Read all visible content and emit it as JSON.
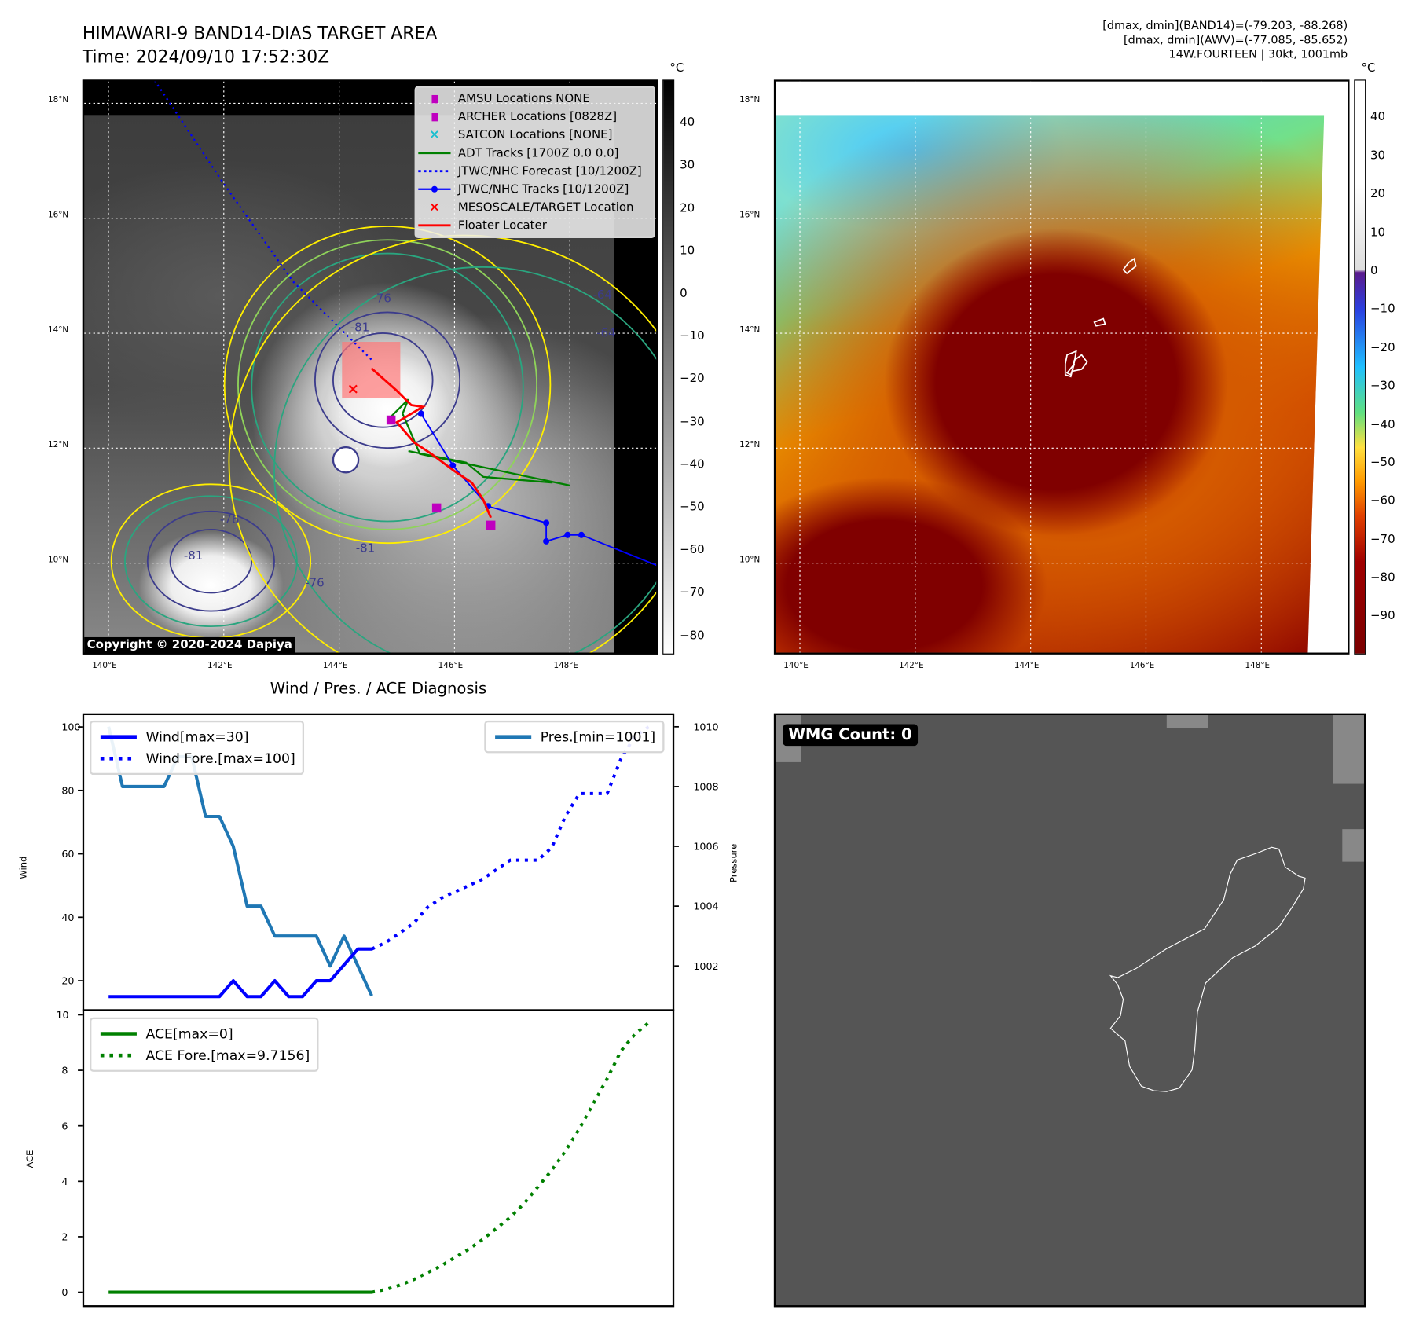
{
  "header": {
    "title": "HIMAWARI-9 BAND14-DIAS TARGET AREA",
    "time": "Time: 2024/09/10 17:52:30Z",
    "info_line1": "[dmax, dmin](BAND14)=(-79.203, -88.268)",
    "info_line2": "[dmax, dmin](AWV)=(-77.085, -85.652)",
    "info_line3": "14W.FOURTEEN | 30kt, 1001mb"
  },
  "map": {
    "lon_ticks": [
      "140°E",
      "142°E",
      "144°E",
      "146°E",
      "148°E"
    ],
    "lat_ticks": [
      "18°N",
      "16°N",
      "14°N",
      "12°N",
      "10°N"
    ],
    "lon_values": [
      140,
      142,
      144,
      146,
      148
    ],
    "lat_values": [
      18,
      16,
      14,
      12,
      10
    ],
    "lon_range": [
      139.58,
      149.56
    ],
    "lat_range": [
      8.38,
      18.38
    ],
    "copyright": "Copyright © 2020-2024 Dapiya",
    "contour_labels": [
      "-76",
      "-81",
      "-64",
      "-64",
      "-76",
      "-81",
      "-81",
      "-76"
    ],
    "legend": [
      {
        "label": "AMSU Locations NONE",
        "symbol": "square",
        "color": "#bf00bf"
      },
      {
        "label": "ARCHER Locations [0828Z]",
        "symbol": "square",
        "color": "#bf00bf"
      },
      {
        "label": "SATCON Locations [NONE]",
        "symbol": "x",
        "color": "#17becf"
      },
      {
        "label": "ADT Tracks [1700Z 0.0 0.0]",
        "symbol": "line",
        "color": "#008000"
      },
      {
        "label": "JTWC/NHC Forecast [10/1200Z]",
        "symbol": "dotted",
        "color": "#0000ff"
      },
      {
        "label": "JTWC/NHC Tracks [10/1200Z]",
        "symbol": "line-dot",
        "color": "#0000ff"
      },
      {
        "label": "MESOSCALE/TARGET Location",
        "symbol": "x",
        "color": "#ff0000"
      },
      {
        "label": "Floater Locater",
        "symbol": "line",
        "color": "#ff0000"
      }
    ],
    "jtwc_forecast": [
      [
        140.8,
        18.4
      ],
      [
        142.0,
        16.6
      ],
      [
        143.2,
        14.9
      ],
      [
        144.6,
        13.5
      ]
    ],
    "jtwc_track": [
      [
        145.42,
        12.6
      ],
      [
        145.97,
        11.7
      ],
      [
        146.58,
        10.99
      ],
      [
        147.59,
        10.7
      ],
      [
        147.59,
        10.38
      ],
      [
        147.96,
        10.49
      ],
      [
        148.2,
        10.49
      ],
      [
        149.56,
        9.94
      ]
    ],
    "floater_track": [
      [
        144.56,
        13.39
      ],
      [
        145.0,
        13.0
      ],
      [
        145.25,
        12.75
      ],
      [
        145.45,
        12.72
      ],
      [
        145.0,
        12.45
      ],
      [
        145.3,
        12.1
      ],
      [
        145.6,
        11.9
      ],
      [
        146.0,
        11.6
      ],
      [
        146.3,
        11.4
      ],
      [
        146.5,
        11.1
      ],
      [
        146.63,
        10.79
      ]
    ],
    "adt_tracks": [
      [
        [
          144.9,
          12.55
        ],
        [
          145.2,
          12.85
        ],
        [
          145.1,
          12.6
        ],
        [
          145.4,
          11.9
        ],
        [
          148.0,
          11.35
        ]
      ],
      [
        [
          145.2,
          11.95
        ],
        [
          146.2,
          11.75
        ],
        [
          146.5,
          11.5
        ],
        [
          147.7,
          11.4
        ]
      ]
    ],
    "target_location": [
      144.23,
      13.04
    ],
    "archer_locations": [
      [
        144.9,
        12.49
      ],
      [
        145.69,
        10.96
      ],
      [
        146.63,
        10.66
      ]
    ],
    "target_box": [
      [
        144.05,
        13.85
      ],
      [
        145.06,
        12.87
      ]
    ],
    "colorbar_left": {
      "unit": "°C",
      "ticks": [
        "40",
        "30",
        "20",
        "10",
        "0",
        "−10",
        "−20",
        "−30",
        "−40",
        "−50",
        "−60",
        "−70",
        "−80"
      ],
      "values": [
        40,
        30,
        20,
        10,
        0,
        -10,
        -20,
        -30,
        -40,
        -50,
        -60,
        -70,
        -80
      ],
      "range": [
        -84.3,
        50.2
      ]
    },
    "colorbar_right": {
      "unit": "°C",
      "ticks": [
        "40",
        "30",
        "20",
        "10",
        "0",
        "−10",
        "−20",
        "−30",
        "−40",
        "−50",
        "−60",
        "−70",
        "−80",
        "−90"
      ],
      "values": [
        40,
        30,
        20,
        10,
        0,
        -10,
        -20,
        -30,
        -40,
        -50,
        -60,
        -70,
        -80,
        -90
      ],
      "range": [
        -99.8,
        50
      ]
    }
  },
  "chart_data": [
    {
      "type": "line",
      "title": "Wind / Pres. / ACE Diagnosis",
      "ylabel": "Wind",
      "y2label": "Pressure",
      "ylim": [
        11,
        104.3
      ],
      "y2lim": [
        1000.55,
        1010.45
      ],
      "yticks": [
        20,
        40,
        60,
        80,
        100
      ],
      "y2ticks": [
        1002,
        1004,
        1006,
        1008,
        1010
      ],
      "series": [
        {
          "name": "Wind[max=30]",
          "color": "#0000ff",
          "style": "solid",
          "x": [
            0,
            1,
            2,
            3,
            4,
            5,
            6,
            7,
            8,
            9,
            10,
            11,
            12,
            13,
            14,
            15,
            16,
            17,
            18,
            19
          ],
          "values": [
            15,
            15,
            15,
            15,
            15,
            15,
            15,
            15,
            15,
            20,
            15,
            15,
            20,
            15,
            15,
            20,
            20,
            25,
            30,
            30
          ]
        },
        {
          "name": "Wind Fore.[max=100]",
          "color": "#0000ff",
          "style": "dotted",
          "x": [
            19,
            20,
            21,
            22,
            23,
            24,
            25,
            26,
            27,
            28,
            29,
            30,
            31,
            32,
            33,
            34,
            35,
            36,
            37,
            38,
            39
          ],
          "values": [
            30,
            32,
            35,
            38,
            43,
            46,
            48,
            50,
            52,
            55,
            58,
            58,
            58,
            62,
            72,
            79,
            79,
            79,
            90,
            97,
            100
          ]
        },
        {
          "name": "Pres.[min=1001]",
          "color": "#1f77b4",
          "style": "solid",
          "axis": "right",
          "x": [
            0,
            1,
            2,
            3,
            4,
            5,
            6,
            7,
            8,
            9,
            10,
            11,
            12,
            13,
            14,
            15,
            16,
            17,
            18,
            19
          ],
          "values": [
            1010,
            1008,
            1008,
            1008,
            1008,
            1009,
            1009,
            1007,
            1007,
            1006,
            1004,
            1004,
            1003,
            1003,
            1003,
            1003,
            1002,
            1003,
            1002,
            1001
          ]
        }
      ]
    },
    {
      "type": "line",
      "ylabel": "ACE",
      "ylim": [
        -0.5,
        10.2
      ],
      "yticks": [
        0,
        2,
        4,
        6,
        8,
        10
      ],
      "series": [
        {
          "name": "ACE[max=0]",
          "color": "#008000",
          "style": "solid",
          "x": [
            0,
            1,
            2,
            3,
            4,
            5,
            6,
            7,
            8,
            9,
            10,
            11,
            12,
            13,
            14,
            15,
            16,
            17,
            18,
            19
          ],
          "values": [
            0,
            0,
            0,
            0,
            0,
            0,
            0,
            0,
            0,
            0,
            0,
            0,
            0,
            0,
            0,
            0,
            0,
            0,
            0,
            0
          ]
        },
        {
          "name": "ACE Fore.[max=9.7156]",
          "color": "#008000",
          "style": "dotted",
          "x": [
            19,
            20,
            21,
            22,
            23,
            24,
            25,
            26,
            27,
            28,
            29,
            30,
            31,
            32,
            33,
            34,
            35,
            36,
            37,
            38,
            39
          ],
          "values": [
            0,
            0.1,
            0.25,
            0.45,
            0.7,
            0.95,
            1.25,
            1.55,
            1.9,
            2.3,
            2.7,
            3.2,
            3.8,
            4.4,
            5.1,
            5.9,
            6.8,
            7.7,
            8.7,
            9.3,
            9.7156
          ]
        }
      ]
    }
  ],
  "wmg": {
    "label": "WMG Count: 0"
  }
}
